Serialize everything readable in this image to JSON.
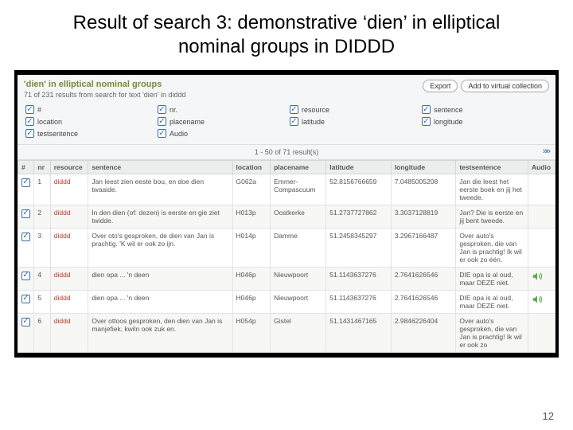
{
  "slide": {
    "title": "Result of search 3: demonstrative ‘dien’ in elliptical nominal groups in DIDDD",
    "page_number": "12"
  },
  "panel": {
    "title": "'dien' in elliptical nominal groups",
    "subtitle": "71 of 231 results from search for text 'dien' in diddd",
    "buttons": {
      "export": "Export",
      "add": "Add to virtual collection"
    },
    "filters": [
      "#",
      "nr.",
      "resource",
      "sentence",
      "location",
      "placename",
      "latitude",
      "longitude",
      "testsentence",
      "Audio"
    ],
    "pager": {
      "range": "1 - 50 of 71 result(s)",
      "next": "»»"
    },
    "columns": [
      "#",
      "nr",
      "resource",
      "sentence",
      "location",
      "placename",
      "latitude",
      "longitude",
      "testsentence",
      "Audio"
    ],
    "rows": [
      {
        "nr": "1",
        "resource": "diddd",
        "sentence": "Jan leest zien eeste bou, en doe dien twaaide.",
        "location": "G062a",
        "placename": "Emmer-Compascuum",
        "latitude": "52.8156766659",
        "longitude": "7.0485005208",
        "testsentence": "Jan die leest het eerste boek en jij het tweede.",
        "audio": false
      },
      {
        "nr": "2",
        "resource": "diddd",
        "sentence": "In den dien (of: dezen) is eerste en gie ziet twidde.",
        "location": "H013p",
        "placename": "Oostkerke",
        "latitude": "51.2737727862",
        "longitude": "3.3037128819",
        "testsentence": "Jan? Die is eerste en jij bent tweede.",
        "audio": false
      },
      {
        "nr": "3",
        "resource": "diddd",
        "sentence": "Over oto's gesproken, de dien van Jan is prachtig. 'K wil er ook zo ijn.",
        "location": "H014p",
        "placename": "Damme",
        "latitude": "51.2458345297",
        "longitude": "3.2967166487",
        "testsentence": "Over auto's gesproken, die van Jan is prachtig! Ik wil er ook zo één.",
        "audio": false
      },
      {
        "nr": "4",
        "resource": "diddd",
        "sentence": "dien opa ... 'n deen",
        "location": "H046p",
        "placename": "Nieuwpoort",
        "latitude": "51.1143637276",
        "longitude": "2.7641626546",
        "testsentence": "DIE opa is al oud, maar DEZE niet.",
        "audio": true
      },
      {
        "nr": "5",
        "resource": "diddd",
        "sentence": "dien opa ... 'n deen",
        "location": "H046p",
        "placename": "Nieuwpoort",
        "latitude": "51.1143637276",
        "longitude": "2.7641626546",
        "testsentence": "DIE opa is al oud, maar DEZE niet.",
        "audio": true
      },
      {
        "nr": "6",
        "resource": "diddd",
        "sentence": "Over ottoos gesproken, den dien van Jan is manjefiek, kwiln ook zuk en.",
        "location": "H054p",
        "placename": "Gistel",
        "latitude": "51.1431467165",
        "longitude": "2.9846226404",
        "testsentence": "Over auto's gesproken, die van Jan is prachtig! Ik wil er ook zo",
        "audio": false
      }
    ]
  }
}
